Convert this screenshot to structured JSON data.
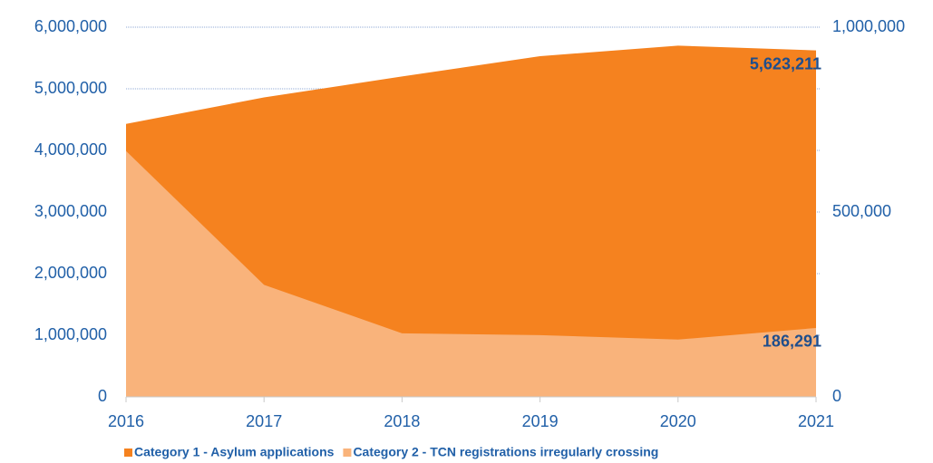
{
  "chart_data": {
    "type": "area",
    "categories": [
      "2016",
      "2017",
      "2018",
      "2019",
      "2020",
      "2021"
    ],
    "series": [
      {
        "name": "Category 1 - Asylum applications",
        "color": "#f5821f",
        "axis": "y",
        "values": [
          4430000,
          4860000,
          5200000,
          5530000,
          5700000,
          5623211
        ],
        "value_labels": [
          null,
          null,
          null,
          null,
          null,
          "5,623,211"
        ]
      },
      {
        "name": "Category 2 - TCN registrations irregularly crossing",
        "color": "#f9b37b",
        "axis": "y2",
        "values": [
          665000,
          303000,
          172000,
          167000,
          155000,
          186291
        ],
        "value_labels": [
          null,
          null,
          null,
          null,
          null,
          "186,291"
        ]
      }
    ],
    "ylim": [
      0,
      6000000
    ],
    "yticks": [
      0,
      {
        "value": 1000000,
        "label": "1,000,000"
      },
      {
        "value": 2000000,
        "label": "2,000,000"
      },
      {
        "value": 3000000,
        "label": "3,000,000"
      },
      {
        "value": 4000000,
        "label": "4,000,000"
      },
      {
        "value": 5000000,
        "label": "5,000,000"
      },
      {
        "value": 6000000,
        "label": "6,000,000"
      }
    ],
    "y2lim": [
      0,
      1000000
    ],
    "y2ticks": [
      0,
      {
        "value": 500000,
        "label": "500,000"
      },
      {
        "value": 1000000,
        "label": "1,000,000"
      }
    ],
    "grid": true
  }
}
